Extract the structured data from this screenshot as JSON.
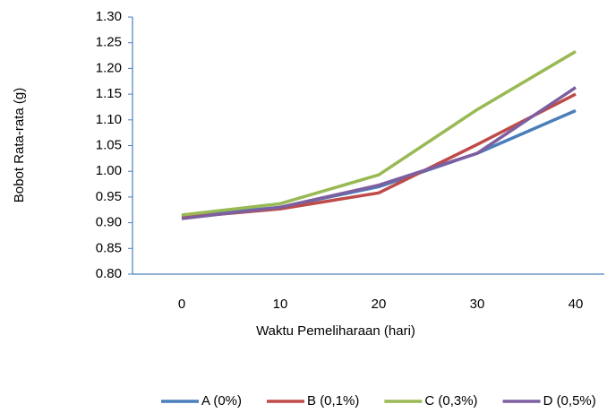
{
  "chart_data": {
    "type": "line",
    "xlabel": "Waktu Pemeliharaan (hari)",
    "ylabel": "Bobot Rata-rata (g)",
    "categories": [
      "0",
      "10",
      "20",
      "30",
      "40"
    ],
    "series": [
      {
        "name": "A (0%)",
        "color": "#4a7ebb",
        "values": [
          0.912,
          0.93,
          0.97,
          1.035,
          1.118
        ]
      },
      {
        "name": "B (0,1%)",
        "color": "#be4b48",
        "values": [
          0.91,
          0.927,
          0.958,
          1.052,
          1.15
        ]
      },
      {
        "name": "C (0,3%)",
        "color": "#98b954",
        "values": [
          0.915,
          0.937,
          0.993,
          1.12,
          1.233
        ]
      },
      {
        "name": "D (0,5%)",
        "color": "#7d5fa0",
        "values": [
          0.908,
          0.93,
          0.973,
          1.035,
          1.163
        ]
      }
    ],
    "ylim": [
      0.8,
      1.3
    ],
    "yticks": [
      {
        "value": 0.8,
        "label": "0.80"
      },
      {
        "value": 0.85,
        "label": "0.85"
      },
      {
        "value": 0.9,
        "label": "0.90"
      },
      {
        "value": 0.95,
        "label": "0.95"
      },
      {
        "value": 1.0,
        "label": "1.00"
      },
      {
        "value": 1.05,
        "label": "1.05"
      },
      {
        "value": 1.1,
        "label": "1.10"
      },
      {
        "value": 1.15,
        "label": "1.15"
      },
      {
        "value": 1.2,
        "label": "1.20"
      },
      {
        "value": 1.25,
        "label": "1.25"
      },
      {
        "value": 1.3,
        "label": "1.30"
      }
    ],
    "grid": false,
    "legend": "bottom"
  }
}
